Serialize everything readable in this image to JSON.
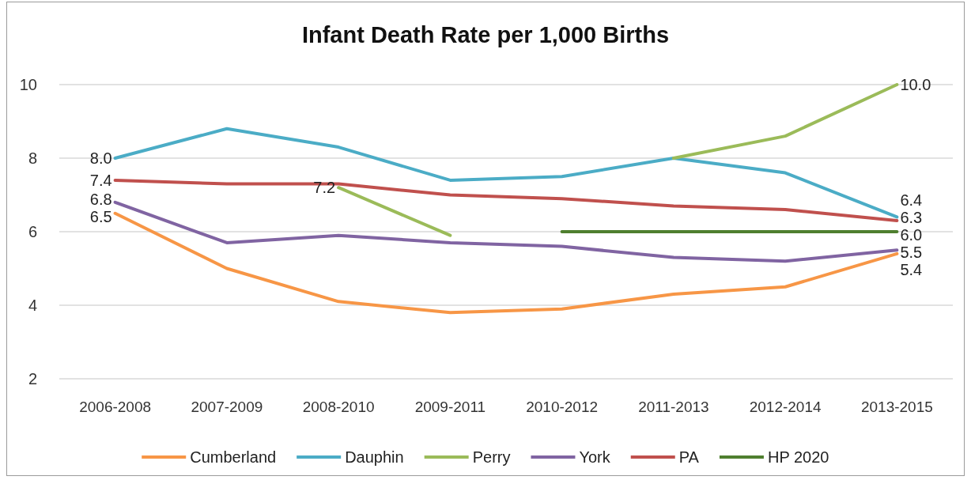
{
  "chart_data": {
    "type": "line",
    "title": "Infant Death Rate per 1,000 Births",
    "categories": [
      "2006-2008",
      "2007-2009",
      "2008-2010",
      "2009-2011",
      "2010-2012",
      "2011-2013",
      "2012-2014",
      "2013-2015"
    ],
    "series": [
      {
        "name": "Cumberland",
        "color": "#f79646",
        "values": [
          6.5,
          5.0,
          4.1,
          3.8,
          3.9,
          4.3,
          4.5,
          5.4
        ],
        "value_labels": [
          "6.5",
          null,
          null,
          null,
          null,
          null,
          null,
          "5.4"
        ]
      },
      {
        "name": "Dauphin",
        "color": "#4bacc6",
        "values": [
          8.0,
          8.8,
          8.3,
          7.4,
          7.5,
          8.0,
          7.6,
          6.4
        ],
        "value_labels": [
          "8.0",
          null,
          null,
          null,
          null,
          null,
          null,
          "6.4"
        ]
      },
      {
        "name": "Perry",
        "color": "#9bbb59",
        "values": [
          null,
          null,
          7.2,
          5.9,
          null,
          8.0,
          8.6,
          10.0
        ],
        "value_labels": [
          null,
          null,
          "7.2",
          null,
          null,
          null,
          null,
          "10.0"
        ]
      },
      {
        "name": "York",
        "color": "#8064a2",
        "values": [
          6.8,
          5.7,
          5.9,
          5.7,
          5.6,
          5.3,
          5.2,
          5.5
        ],
        "value_labels": [
          "6.8",
          null,
          null,
          null,
          null,
          null,
          null,
          "5.5"
        ]
      },
      {
        "name": "PA",
        "color": "#c0504d",
        "values": [
          7.4,
          7.3,
          7.3,
          7.0,
          6.9,
          6.7,
          6.6,
          6.3
        ],
        "value_labels": [
          "7.4",
          null,
          null,
          null,
          null,
          null,
          null,
          "6.3"
        ]
      },
      {
        "name": "HP 2020",
        "color": "#4f7f2f",
        "values": [
          null,
          null,
          null,
          null,
          6.0,
          6.0,
          6.0,
          6.0
        ],
        "value_labels": [
          null,
          null,
          null,
          null,
          null,
          null,
          null,
          "6.0"
        ]
      }
    ],
    "ylim": [
      2,
      10
    ],
    "yticks": [
      2,
      4,
      6,
      8,
      10
    ],
    "grid": "y",
    "legend": "bottom",
    "marker": "none",
    "line_style": "solid"
  }
}
